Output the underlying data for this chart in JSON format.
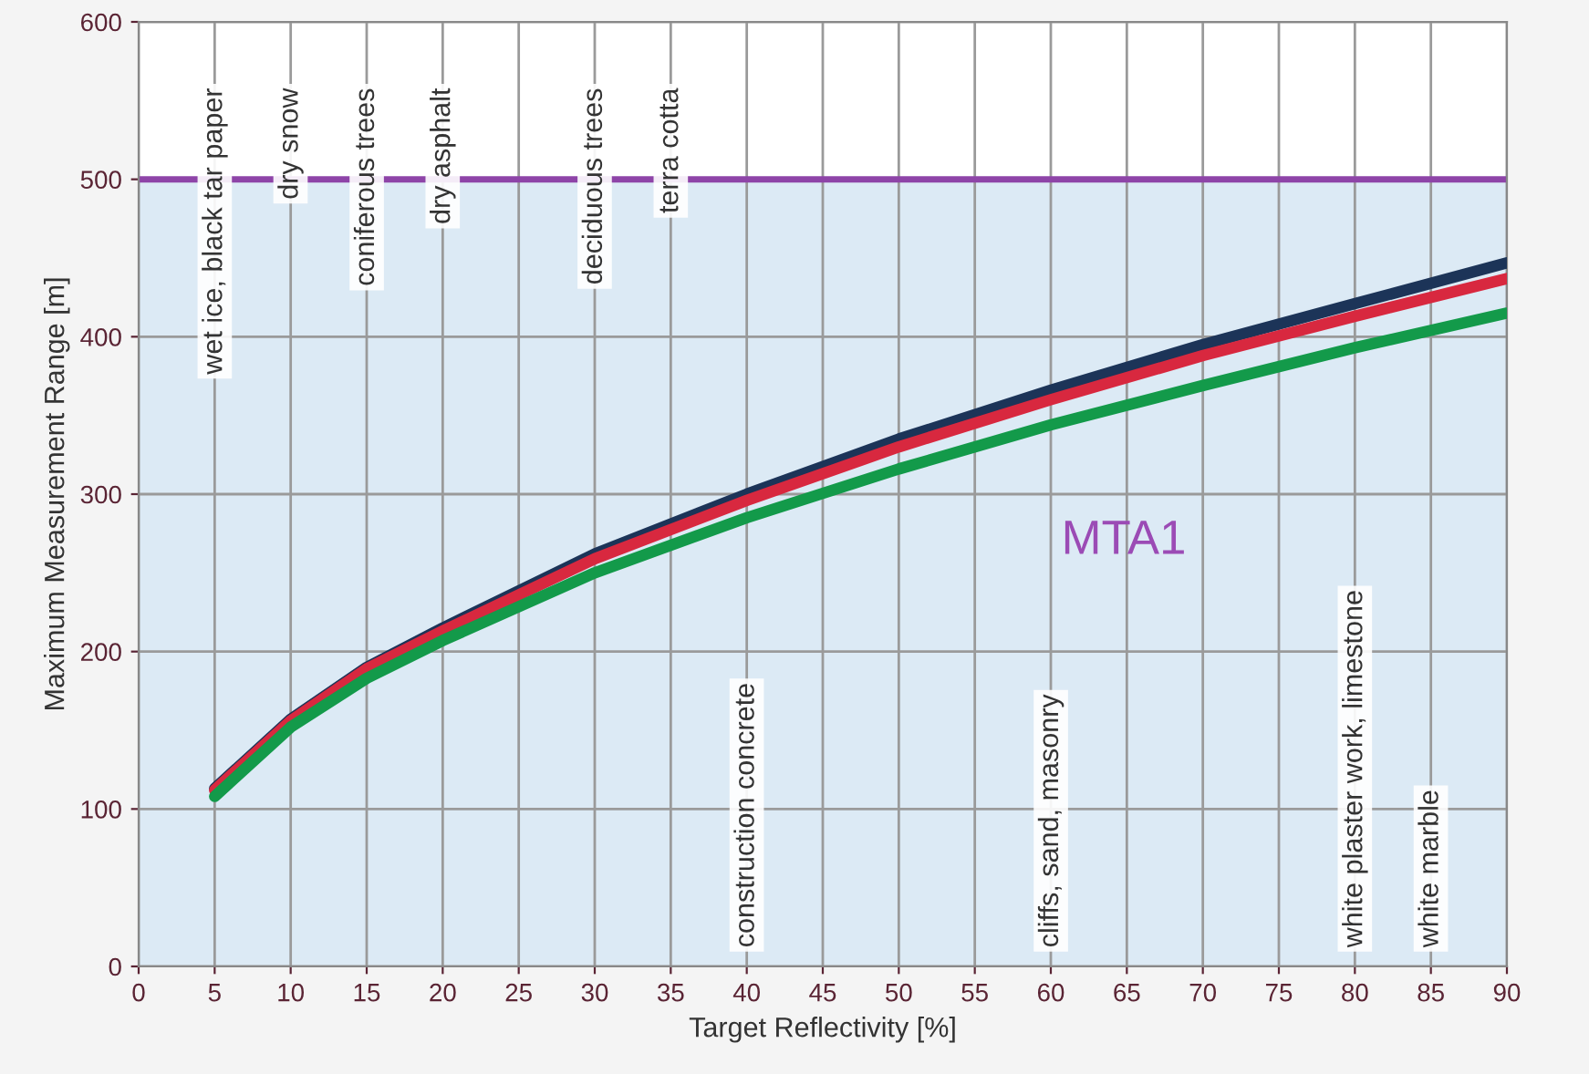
{
  "chart_data": {
    "type": "line",
    "xlabel": "Target Reflectivity [%]",
    "ylabel": "Maximum Measurement Range [m]",
    "xlim": [
      0,
      90
    ],
    "xticks": [
      0,
      5,
      10,
      15,
      20,
      25,
      30,
      35,
      40,
      45,
      50,
      55,
      60,
      65,
      70,
      75,
      80,
      85,
      90
    ],
    "ylim": [
      0,
      600
    ],
    "yticks": [
      0,
      100,
      200,
      300,
      400,
      500,
      600
    ],
    "grid": true,
    "legend": false,
    "bands": [
      {
        "axis": "y",
        "from": 0,
        "to": 500,
        "color": "#dceaf5"
      }
    ],
    "ref_lines": [
      {
        "axis": "y",
        "value": 500,
        "color": "#8e44a8",
        "line_style": "solid"
      }
    ],
    "series": [
      {
        "color": "#1c3458",
        "x": [
          5,
          10,
          15,
          20,
          30,
          40,
          50,
          60,
          70,
          80,
          90
        ],
        "values": [
          113,
          157,
          190,
          215,
          262,
          300,
          335,
          366,
          395,
          421,
          447
        ]
      },
      {
        "color": "#d8283f",
        "x": [
          5,
          10,
          15,
          20,
          30,
          40,
          50,
          60,
          70,
          80,
          90
        ],
        "values": [
          112,
          156,
          189,
          213,
          259,
          296,
          330,
          360,
          388,
          413,
          437
        ]
      },
      {
        "color": "#139a4a",
        "x": [
          5,
          10,
          15,
          20,
          30,
          40,
          50,
          60,
          70,
          80,
          90
        ],
        "values": [
          108,
          152,
          183,
          207,
          250,
          285,
          316,
          344,
          369,
          393,
          415
        ]
      }
    ],
    "annotations": [
      "wet ice, black tar paper",
      "dry snow",
      "coniferous trees",
      "dry asphalt",
      "deciduous trees",
      "terra cotta",
      "construction concrete",
      "cliffs, sand, masonry",
      "white plaster work, limestone",
      "white marble",
      "MTA1"
    ]
  }
}
